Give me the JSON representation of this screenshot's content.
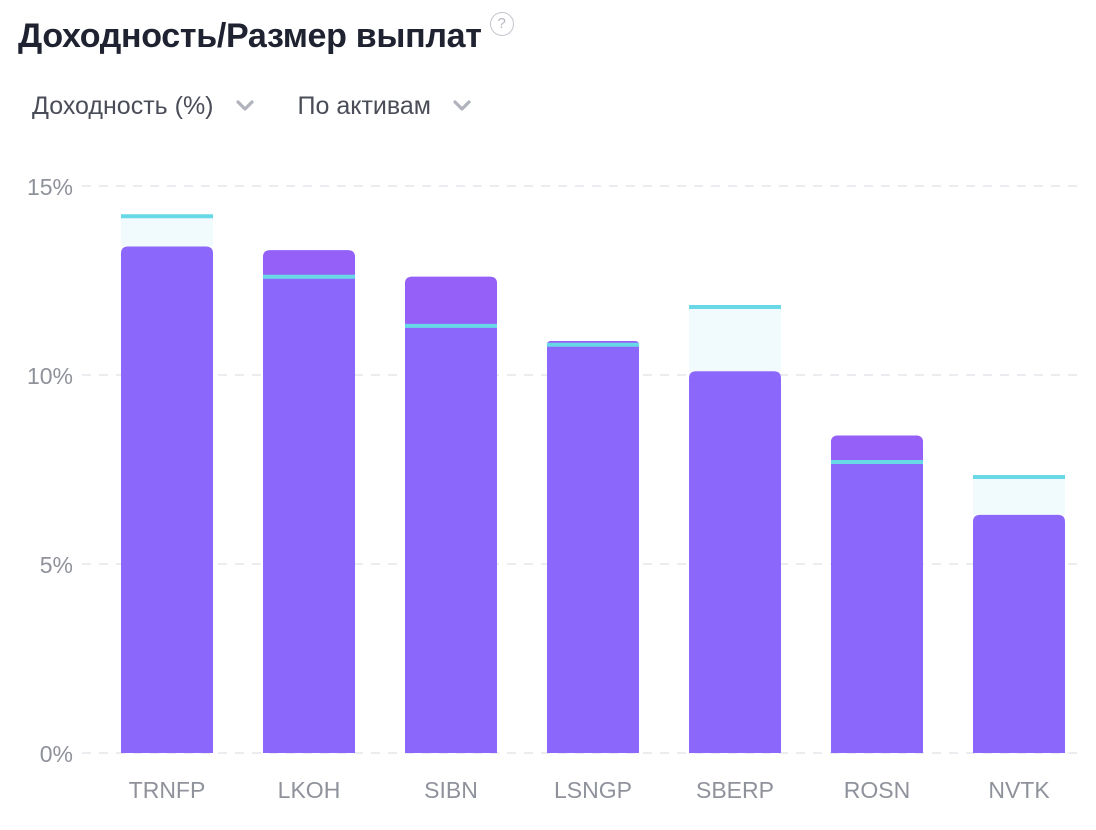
{
  "header": {
    "title": "Доходность/Размер выплат",
    "help_symbol": "?"
  },
  "controls": {
    "metric_label": "Доходность (%)",
    "grouping_label": "По активам"
  },
  "colors": {
    "bar_current": "#8b67fb",
    "bar_upper": "#9460f8",
    "forecast_line": "#69d8e6",
    "forecast_fill": "#f1fafd",
    "grid": "#e4e6ea",
    "axis_text": "#8f929b",
    "chevron": "#b0b3bb"
  },
  "chart_data": {
    "type": "bar",
    "ylim": [
      0,
      15
    ],
    "yticks": [
      0,
      5,
      10,
      15
    ],
    "ytick_labels": [
      "0%",
      "5%",
      "10%",
      "15%"
    ],
    "grid": true,
    "categories": [
      "TRNFP",
      "LKOH",
      "SIBN",
      "LSNGP",
      "SBERP",
      "ROSN",
      "NVTK"
    ],
    "series": [
      {
        "values": [
          13.4,
          13.3,
          12.6,
          10.9,
          10.1,
          8.4,
          6.3
        ]
      },
      {
        "values": [
          14.2,
          12.6,
          11.3,
          10.8,
          11.8,
          7.7,
          7.3
        ]
      }
    ]
  }
}
